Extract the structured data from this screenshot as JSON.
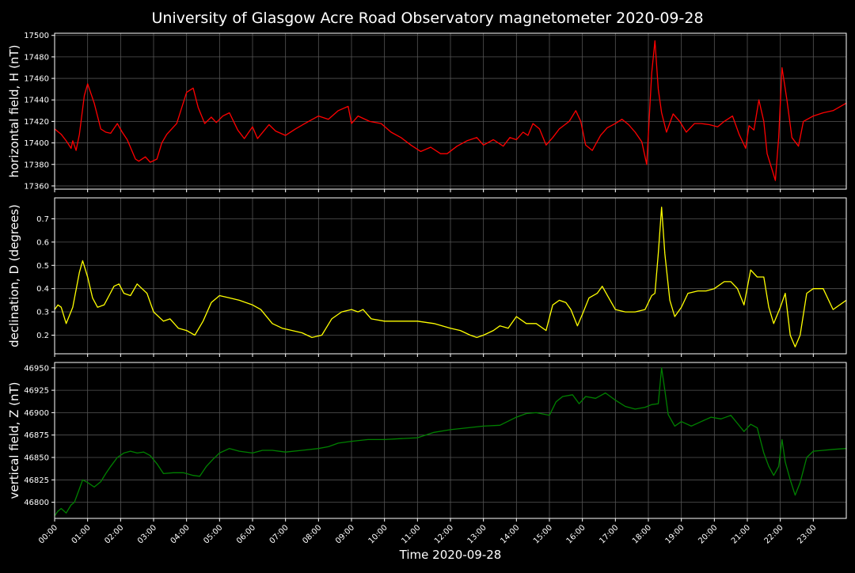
{
  "title": "University of Glasgow Acre Road Observatory magnetometer 2020-09-28",
  "xlabel": "Time 2020-09-28",
  "chart_data": [
    {
      "type": "line",
      "ylabel": "horizontal field, H (nT)",
      "color": "#ff0000",
      "ylim": [
        17357,
        17502
      ],
      "yticks": [
        17360,
        17380,
        17400,
        17420,
        17440,
        17460,
        17480,
        17500
      ],
      "x_hours": [
        0,
        0.2,
        0.35,
        0.5,
        0.55,
        0.65,
        0.75,
        0.9,
        1.0,
        1.2,
        1.4,
        1.55,
        1.7,
        1.9,
        2.05,
        2.2,
        2.45,
        2.55,
        2.75,
        2.9,
        3.1,
        3.25,
        3.4,
        3.7,
        4.0,
        4.2,
        4.35,
        4.55,
        4.75,
        4.9,
        5.1,
        5.3,
        5.55,
        5.75,
        6.0,
        6.15,
        6.5,
        6.7,
        7.0,
        7.3,
        7.7,
        8.0,
        8.3,
        8.6,
        8.9,
        9.0,
        9.2,
        9.55,
        9.9,
        10.2,
        10.5,
        10.8,
        11.1,
        11.4,
        11.7,
        11.9,
        12.2,
        12.5,
        12.8,
        13.0,
        13.3,
        13.6,
        13.8,
        14.0,
        14.2,
        14.35,
        14.5,
        14.7,
        14.9,
        15.1,
        15.3,
        15.6,
        15.8,
        15.95,
        16.1,
        16.3,
        16.55,
        16.75,
        17.0,
        17.2,
        17.4,
        17.6,
        17.8,
        17.95,
        18.1,
        18.2,
        18.3,
        18.4,
        18.55,
        18.75,
        18.95,
        19.15,
        19.4,
        19.6,
        19.85,
        20.1,
        20.3,
        20.55,
        20.75,
        20.95,
        21.05,
        21.2,
        21.35,
        21.5,
        21.6,
        21.75,
        21.85,
        21.95,
        22.05,
        22.2,
        22.35,
        22.55,
        22.7,
        23.0,
        23.3,
        23.6,
        24.0
      ],
      "values": [
        17413,
        17408,
        17402,
        17395,
        17402,
        17393,
        17408,
        17444,
        17455,
        17437,
        17413,
        17410,
        17409,
        17418,
        17410,
        17403,
        17385,
        17383,
        17387,
        17382,
        17385,
        17400,
        17408,
        17418,
        17447,
        17451,
        17433,
        17418,
        17424,
        17419,
        17425,
        17428,
        17412,
        17404,
        17415,
        17404,
        17417,
        17411,
        17407,
        17413,
        17420,
        17425,
        17422,
        17430,
        17434,
        17418,
        17425,
        17420,
        17418,
        17410,
        17405,
        17398,
        17392,
        17396,
        17390,
        17390,
        17397,
        17402,
        17405,
        17398,
        17403,
        17397,
        17405,
        17403,
        17410,
        17407,
        17418,
        17413,
        17398,
        17405,
        17413,
        17420,
        17430,
        17420,
        17398,
        17393,
        17407,
        17414,
        17418,
        17422,
        17417,
        17410,
        17401,
        17380,
        17465,
        17495,
        17450,
        17428,
        17410,
        17427,
        17420,
        17410,
        17418,
        17418,
        17417,
        17415,
        17420,
        17425,
        17408,
        17395,
        17416,
        17412,
        17440,
        17420,
        17390,
        17375,
        17365,
        17405,
        17470,
        17440,
        17405,
        17397,
        17420,
        17425,
        17428,
        17430,
        17437
      ]
    },
    {
      "type": "line",
      "ylabel": "declination, D (degrees)",
      "color": "#ffff00",
      "ylim": [
        0.12,
        0.79
      ],
      "yticks": [
        0.2,
        0.3,
        0.4,
        0.5,
        0.6,
        0.7
      ],
      "x_hours": [
        0,
        0.1,
        0.2,
        0.35,
        0.55,
        0.75,
        0.85,
        1.0,
        1.15,
        1.3,
        1.5,
        1.65,
        1.8,
        1.95,
        2.1,
        2.3,
        2.5,
        2.65,
        2.8,
        3.0,
        3.3,
        3.5,
        3.75,
        4.0,
        4.25,
        4.5,
        4.75,
        5.0,
        5.3,
        5.6,
        6.0,
        6.25,
        6.6,
        6.9,
        7.2,
        7.5,
        7.8,
        8.1,
        8.4,
        8.7,
        9.0,
        9.2,
        9.35,
        9.6,
        10.0,
        10.5,
        11.0,
        11.5,
        12.0,
        12.3,
        12.6,
        12.8,
        13.0,
        13.3,
        13.5,
        13.75,
        14.0,
        14.3,
        14.6,
        14.9,
        15.1,
        15.3,
        15.5,
        15.65,
        15.85,
        16.0,
        16.2,
        16.45,
        16.6,
        16.8,
        17.0,
        17.3,
        17.6,
        17.9,
        18.1,
        18.2,
        18.3,
        18.4,
        18.5,
        18.65,
        18.8,
        19.0,
        19.2,
        19.5,
        19.75,
        20.0,
        20.3,
        20.5,
        20.7,
        20.9,
        21.1,
        21.3,
        21.5,
        21.65,
        21.8,
        22.0,
        22.15,
        22.3,
        22.45,
        22.6,
        22.8,
        23.0,
        23.3,
        23.6,
        24.0
      ],
      "values": [
        0.31,
        0.33,
        0.32,
        0.25,
        0.32,
        0.47,
        0.52,
        0.45,
        0.36,
        0.32,
        0.33,
        0.37,
        0.41,
        0.42,
        0.38,
        0.37,
        0.42,
        0.4,
        0.38,
        0.3,
        0.26,
        0.27,
        0.23,
        0.22,
        0.2,
        0.26,
        0.34,
        0.37,
        0.36,
        0.35,
        0.33,
        0.31,
        0.25,
        0.23,
        0.22,
        0.21,
        0.19,
        0.2,
        0.27,
        0.3,
        0.31,
        0.3,
        0.31,
        0.27,
        0.26,
        0.26,
        0.26,
        0.25,
        0.23,
        0.22,
        0.2,
        0.19,
        0.2,
        0.22,
        0.24,
        0.23,
        0.28,
        0.25,
        0.25,
        0.22,
        0.33,
        0.35,
        0.34,
        0.31,
        0.24,
        0.29,
        0.36,
        0.38,
        0.41,
        0.36,
        0.31,
        0.3,
        0.3,
        0.31,
        0.37,
        0.38,
        0.55,
        0.75,
        0.55,
        0.35,
        0.28,
        0.32,
        0.38,
        0.39,
        0.39,
        0.4,
        0.43,
        0.43,
        0.4,
        0.33,
        0.48,
        0.45,
        0.45,
        0.32,
        0.25,
        0.32,
        0.38,
        0.2,
        0.15,
        0.2,
        0.38,
        0.4,
        0.4,
        0.31,
        0.35
      ]
    },
    {
      "type": "line",
      "ylabel": "vertical field, Z (nT)",
      "color": "#008000",
      "ylim": [
        46782,
        46956
      ],
      "yticks": [
        46800,
        46825,
        46850,
        46875,
        46900,
        46925,
        46950
      ],
      "x_hours": [
        0,
        0.1,
        0.2,
        0.35,
        0.5,
        0.6,
        0.75,
        0.85,
        1.0,
        1.2,
        1.4,
        1.55,
        1.7,
        1.9,
        2.1,
        2.3,
        2.5,
        2.7,
        2.9,
        3.1,
        3.3,
        3.6,
        3.9,
        4.2,
        4.4,
        4.6,
        4.8,
        5.0,
        5.3,
        5.6,
        6.0,
        6.3,
        6.6,
        7.0,
        7.5,
        8.0,
        8.3,
        8.6,
        9.0,
        9.5,
        10.0,
        10.5,
        11.0,
        11.5,
        12.0,
        12.5,
        13.0,
        13.5,
        14.0,
        14.3,
        14.6,
        15.0,
        15.2,
        15.4,
        15.7,
        15.9,
        16.1,
        16.4,
        16.7,
        17.0,
        17.3,
        17.6,
        17.9,
        18.1,
        18.3,
        18.4,
        18.5,
        18.6,
        18.8,
        19.0,
        19.3,
        19.6,
        19.9,
        20.2,
        20.5,
        20.7,
        20.9,
        21.1,
        21.3,
        21.5,
        21.65,
        21.8,
        21.95,
        22.05,
        22.15,
        22.3,
        22.45,
        22.6,
        22.8,
        23.0,
        23.3,
        23.6,
        24.0
      ],
      "values": [
        46785,
        46790,
        46793,
        46788,
        46797,
        46800,
        46815,
        46825,
        46822,
        46817,
        46823,
        46832,
        46840,
        46850,
        46855,
        46857,
        46855,
        46856,
        46852,
        46843,
        46832,
        46833,
        46833,
        46830,
        46829,
        46840,
        46848,
        46855,
        46860,
        46857,
        46855,
        46858,
        46858,
        46856,
        46858,
        46860,
        46862,
        46866,
        46868,
        46870,
        46870,
        46871,
        46872,
        46878,
        46881,
        46883,
        46885,
        46886,
        46895,
        46899,
        46900,
        46897,
        46912,
        46918,
        46920,
        46910,
        46918,
        46916,
        46922,
        46914,
        46907,
        46904,
        46906,
        46909,
        46910,
        46950,
        46925,
        46898,
        46885,
        46890,
        46885,
        46890,
        46895,
        46893,
        46897,
        46888,
        46879,
        46887,
        46883,
        46855,
        46840,
        46830,
        46840,
        46870,
        46845,
        46825,
        46808,
        46822,
        46850,
        46857,
        46858,
        46859,
        46860
      ]
    }
  ],
  "xticks": [
    "00:00",
    "01:00",
    "02:00",
    "03:00",
    "04:00",
    "05:00",
    "06:00",
    "07:00",
    "08:00",
    "09:00",
    "10:00",
    "11:00",
    "12:00",
    "13:00",
    "14:00",
    "15:00",
    "16:00",
    "17:00",
    "18:00",
    "19:00",
    "20:00",
    "21:00",
    "22:00",
    "23:00"
  ],
  "colors": {
    "background": "#000000",
    "axes": "#ffffff",
    "grid": "#555555",
    "text": "#ffffff"
  }
}
